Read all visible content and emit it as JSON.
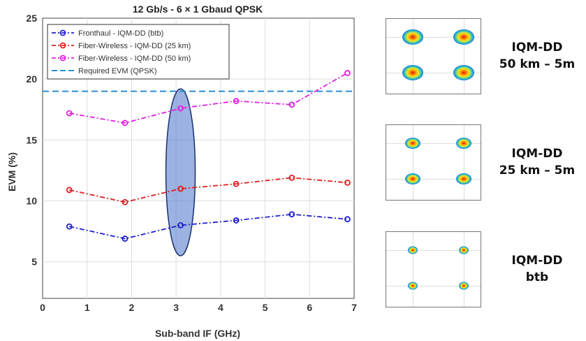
{
  "chart_data": {
    "type": "line",
    "title": "12 Gb/s - 6 × 1 Gbaud QPSK",
    "xlabel": "Sub-band IF (GHz)",
    "ylabel": "EVM (%)",
    "xlim": [
      0,
      7
    ],
    "ylim": [
      2,
      25
    ],
    "xticks": [
      "0",
      "1",
      "2",
      "3",
      "4",
      "5",
      "6",
      "7"
    ],
    "yticks": [
      "5",
      "10",
      "15",
      "20",
      "25"
    ],
    "grid": true,
    "legend_position": "top-left",
    "x": [
      0.6,
      1.85,
      3.1,
      4.35,
      5.6,
      6.85
    ],
    "series": [
      {
        "name": "Fronthaul - IQM-DD (btb)",
        "color": "#2020d0",
        "values": [
          7.9,
          6.9,
          8.0,
          8.4,
          8.9,
          8.5
        ]
      },
      {
        "name": "Fiber-Wireless - IQM-DD (25 km)",
        "color": "#e02020",
        "values": [
          10.9,
          9.9,
          11.0,
          11.4,
          11.9,
          11.5
        ]
      },
      {
        "name": "Fiber-Wireless - IQM-DD (50 km)",
        "color": "#e020e0",
        "values": [
          17.2,
          16.4,
          17.6,
          18.2,
          17.9,
          20.5
        ]
      }
    ],
    "reference_line": {
      "name": "Required EVM (QPSK)",
      "value": 19,
      "color": "#2a8fd0"
    },
    "highlight_ellipse": {
      "x": 3.1,
      "y_min": 5.5,
      "y_max": 19.2,
      "color": "#4a72c8"
    }
  },
  "constellations": [
    {
      "label_line1": "IQM-DD",
      "label_line2": "50 km – 5m",
      "spread": "wide"
    },
    {
      "label_line1": "IQM-DD",
      "label_line2": "25 km – 5m",
      "spread": "medium"
    },
    {
      "label_line1": "IQM-DD",
      "label_line2": "btb",
      "spread": "tight"
    }
  ]
}
